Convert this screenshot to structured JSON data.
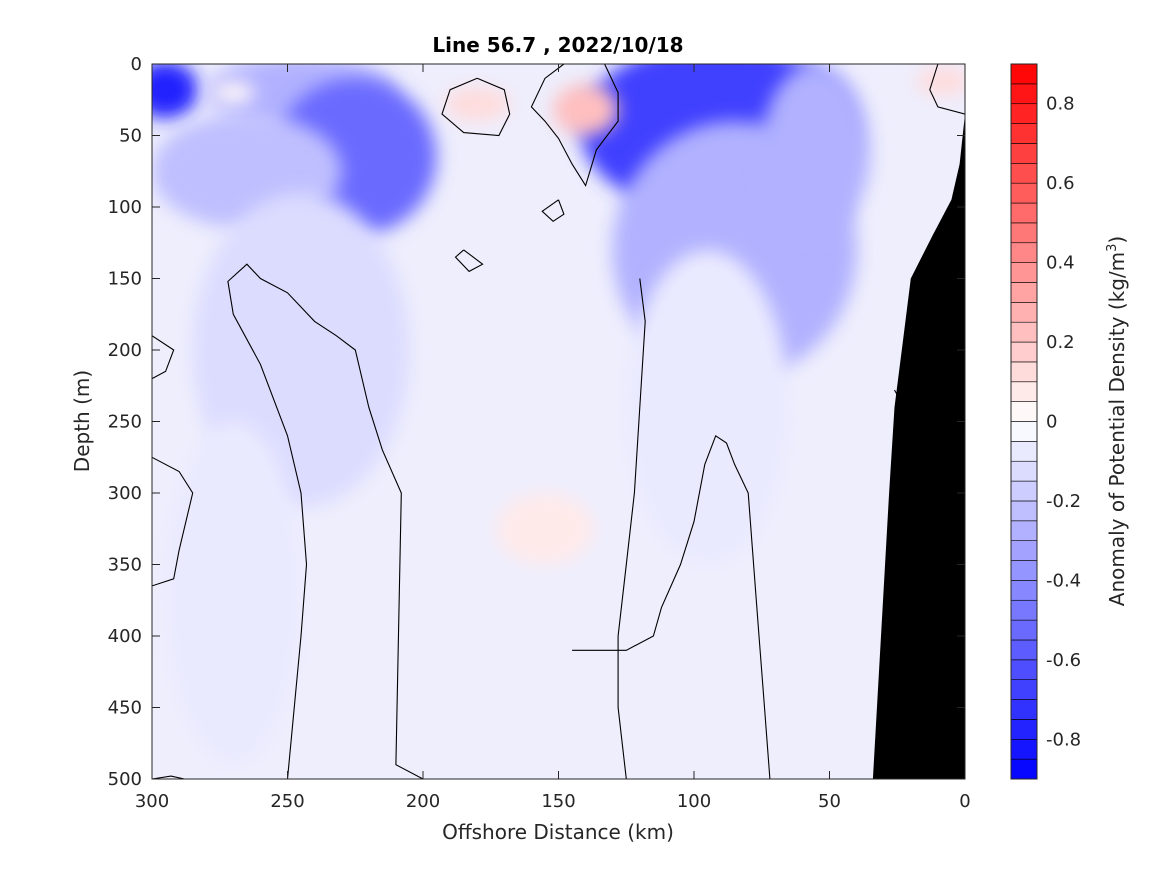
{
  "chart_data": {
    "type": "heatmap",
    "title": "Line 56.7 , 2022/10/18",
    "xlabel": "Offshore Distance (km)",
    "ylabel": "Depth (m)",
    "colorbar_label_main": "Anomaly of Potential Density (kg/m",
    "colorbar_label_sup": "3",
    "colorbar_label_close": ")",
    "xlim": [
      300,
      0
    ],
    "ylim": [
      500,
      0
    ],
    "x_reversed": true,
    "y_reversed": true,
    "xticks": [
      300,
      250,
      200,
      150,
      100,
      50,
      0
    ],
    "xtick_labels": [
      "300",
      "250",
      "200",
      "150",
      "100",
      "50",
      "0"
    ],
    "yticks": [
      0,
      50,
      100,
      150,
      200,
      250,
      300,
      350,
      400,
      450,
      500
    ],
    "ytick_labels": [
      "0",
      "50",
      "100",
      "150",
      "200",
      "250",
      "300",
      "350",
      "400",
      "450",
      "500"
    ],
    "colorbar_range": [
      -0.9,
      0.9
    ],
    "colorbar_step": 0.05,
    "colorbar_ticks": [
      0.8,
      0.6,
      0.4,
      0.2,
      0,
      -0.2,
      -0.4,
      -0.6,
      -0.8
    ],
    "colorbar_tick_labels": [
      "0.8",
      "0.6",
      "0.4",
      "0.2",
      "0",
      "-0.2",
      "-0.4",
      "-0.6",
      "-0.8"
    ],
    "colormap": {
      "negative": "#0000ff",
      "zero": "#ffffff",
      "positive": "#ff0000"
    },
    "bathymetry_color": "#000000",
    "zero_contour_color": "#000000",
    "bathymetry": [
      [
        34,
        500
      ],
      [
        31,
        400
      ],
      [
        28,
        300
      ],
      [
        26,
        240
      ],
      [
        23,
        195
      ],
      [
        20,
        150
      ],
      [
        12,
        120
      ],
      [
        5,
        95
      ],
      [
        2,
        70
      ],
      [
        0,
        35
      ],
      [
        0,
        500
      ]
    ],
    "features": [
      {
        "kind": "blob",
        "x": 295,
        "y": 18,
        "rx": 12,
        "ry": 20,
        "value": -0.75
      },
      {
        "kind": "blob",
        "x": 245,
        "y": 20,
        "rx": 35,
        "ry": 25,
        "value": -0.3
      },
      {
        "kind": "blob",
        "x": 225,
        "y": 65,
        "rx": 30,
        "ry": 55,
        "value": -0.5
      },
      {
        "kind": "blob",
        "x": 265,
        "y": 75,
        "rx": 35,
        "ry": 40,
        "value": -0.2
      },
      {
        "kind": "blob",
        "x": 245,
        "y": 200,
        "rx": 40,
        "ry": 110,
        "value": -0.15
      },
      {
        "kind": "blob",
        "x": 270,
        "y": 370,
        "rx": 25,
        "ry": 120,
        "value": -0.07
      },
      {
        "kind": "blob",
        "x": 92,
        "y": 45,
        "rx": 50,
        "ry": 60,
        "value": -0.7
      },
      {
        "kind": "blob",
        "x": 85,
        "y": 130,
        "rx": 45,
        "ry": 90,
        "value": -0.3
      },
      {
        "kind": "blob",
        "x": 95,
        "y": 240,
        "rx": 30,
        "ry": 110,
        "value": -0.08
      },
      {
        "kind": "blob",
        "x": 55,
        "y": 60,
        "rx": 20,
        "ry": 60,
        "value": -0.25
      },
      {
        "kind": "blob",
        "x": 180,
        "y": 28,
        "rx": 12,
        "ry": 12,
        "value": 0.15
      },
      {
        "kind": "blob",
        "x": 140,
        "y": 32,
        "rx": 12,
        "ry": 18,
        "value": 0.2
      },
      {
        "kind": "blob",
        "x": 155,
        "y": 325,
        "rx": 18,
        "ry": 25,
        "value": 0.06
      },
      {
        "kind": "blob",
        "x": 8,
        "y": 12,
        "rx": 10,
        "ry": 10,
        "value": 0.12
      },
      {
        "kind": "blob",
        "x": 270,
        "y": 20,
        "rx": 8,
        "ry": 8,
        "value": 0.02
      }
    ],
    "zero_contours": [
      [
        [
          180,
          10
        ],
        [
          190,
          18
        ],
        [
          193,
          35
        ],
        [
          185,
          48
        ],
        [
          172,
          50
        ],
        [
          168,
          35
        ],
        [
          170,
          18
        ],
        [
          180,
          10
        ]
      ],
      [
        [
          133,
          0
        ],
        [
          128,
          20
        ],
        [
          128,
          40
        ],
        [
          136,
          60
        ],
        [
          140,
          85
        ],
        [
          145,
          70
        ],
        [
          150,
          52
        ],
        [
          155,
          40
        ],
        [
          160,
          30
        ],
        [
          155,
          10
        ],
        [
          148,
          0
        ]
      ],
      [
        [
          150,
          95
        ],
        [
          148,
          105
        ],
        [
          152,
          110
        ],
        [
          156,
          103
        ],
        [
          150,
          95
        ]
      ],
      [
        [
          185,
          130
        ],
        [
          178,
          140
        ],
        [
          183,
          145
        ],
        [
          188,
          135
        ],
        [
          185,
          130
        ]
      ],
      [
        [
          200,
          500
        ],
        [
          210,
          490
        ],
        [
          208,
          300
        ],
        [
          215,
          270
        ],
        [
          220,
          240
        ],
        [
          225,
          200
        ],
        [
          232,
          190
        ],
        [
          240,
          180
        ],
        [
          250,
          160
        ],
        [
          260,
          150
        ],
        [
          265,
          140
        ],
        [
          272,
          152
        ],
        [
          270,
          175
        ],
        [
          260,
          210
        ],
        [
          250,
          260
        ],
        [
          245,
          300
        ],
        [
          243,
          350
        ],
        [
          245,
          400
        ],
        [
          248,
          460
        ],
        [
          250,
          500
        ]
      ],
      [
        [
          125,
          500
        ],
        [
          128,
          450
        ],
        [
          128,
          400
        ],
        [
          125,
          350
        ],
        [
          122,
          300
        ],
        [
          120,
          240
        ],
        [
          118,
          180
        ],
        [
          120,
          150
        ]
      ],
      [
        [
          72,
          500
        ],
        [
          74,
          450
        ],
        [
          76,
          400
        ],
        [
          78,
          350
        ],
        [
          80,
          300
        ],
        [
          85,
          280
        ],
        [
          88,
          265
        ],
        [
          92,
          260
        ],
        [
          96,
          280
        ],
        [
          100,
          320
        ],
        [
          105,
          350
        ],
        [
          112,
          380
        ],
        [
          115,
          400
        ],
        [
          125,
          410
        ],
        [
          145,
          410
        ]
      ],
      [
        [
          300,
          190
        ],
        [
          292,
          200
        ],
        [
          295,
          215
        ],
        [
          300,
          220
        ]
      ],
      [
        [
          300,
          275
        ],
        [
          290,
          285
        ],
        [
          285,
          300
        ],
        [
          290,
          340
        ],
        [
          292,
          360
        ],
        [
          300,
          365
        ]
      ],
      [
        [
          300,
          500
        ],
        [
          293,
          498
        ],
        [
          288,
          500
        ]
      ],
      [
        [
          20,
          245
        ],
        [
          24,
          235
        ],
        [
          26,
          228
        ]
      ],
      [
        [
          10,
          0
        ],
        [
          13,
          18
        ],
        [
          10,
          30
        ],
        [
          0,
          35
        ]
      ]
    ]
  }
}
